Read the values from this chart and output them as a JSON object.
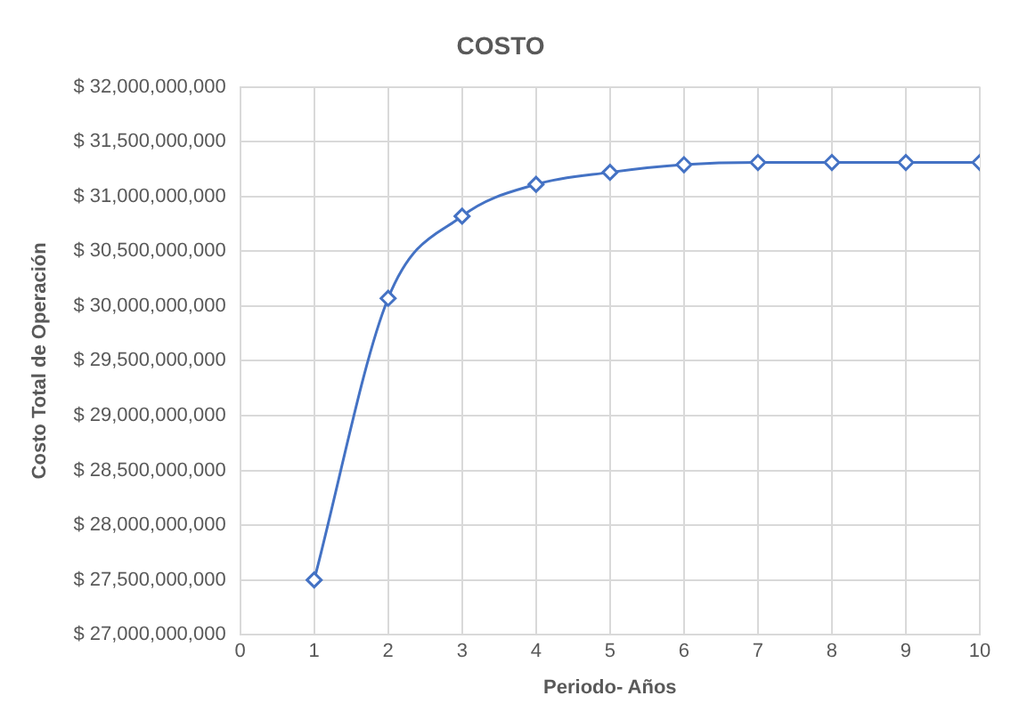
{
  "chart_data": {
    "type": "line",
    "title": "COSTO",
    "xlabel": "Periodo- Años",
    "ylabel": "Costo Total de Operación",
    "x": [
      1,
      2,
      3,
      4,
      5,
      6,
      7,
      8,
      9,
      10
    ],
    "series": [
      {
        "color": "#4472c4",
        "values": [
          27500000000,
          30070000000,
          30820000000,
          31110000000,
          31220000000,
          31290000000,
          31310000000,
          31310000000,
          31310000000,
          31310000000
        ]
      }
    ],
    "xlim": [
      0,
      10
    ],
    "xticks": [
      0,
      1,
      2,
      3,
      4,
      5,
      6,
      7,
      8,
      9,
      10
    ],
    "ylim": [
      27000000000,
      32000000000
    ],
    "yticks": [
      {
        "value": 27000000000,
        "label": "$ 27,000,000,000"
      },
      {
        "value": 27500000000,
        "label": "$ 27,500,000,000"
      },
      {
        "value": 28000000000,
        "label": "$ 28,000,000,000"
      },
      {
        "value": 28500000000,
        "label": "$ 28,500,000,000"
      },
      {
        "value": 29000000000,
        "label": "$ 29,000,000,000"
      },
      {
        "value": 29500000000,
        "label": "$ 29,500,000,000"
      },
      {
        "value": 30000000000,
        "label": "$ 30,000,000,000"
      },
      {
        "value": 30500000000,
        "label": "$ 30,500,000,000"
      },
      {
        "value": 31000000000,
        "label": "$ 31,000,000,000"
      },
      {
        "value": 31500000000,
        "label": "$ 31,500,000,000"
      },
      {
        "value": 32000000000,
        "label": "$ 32,000,000,000"
      }
    ],
    "grid": true,
    "legend": false,
    "marker": "diamond",
    "line_style": "solid"
  }
}
